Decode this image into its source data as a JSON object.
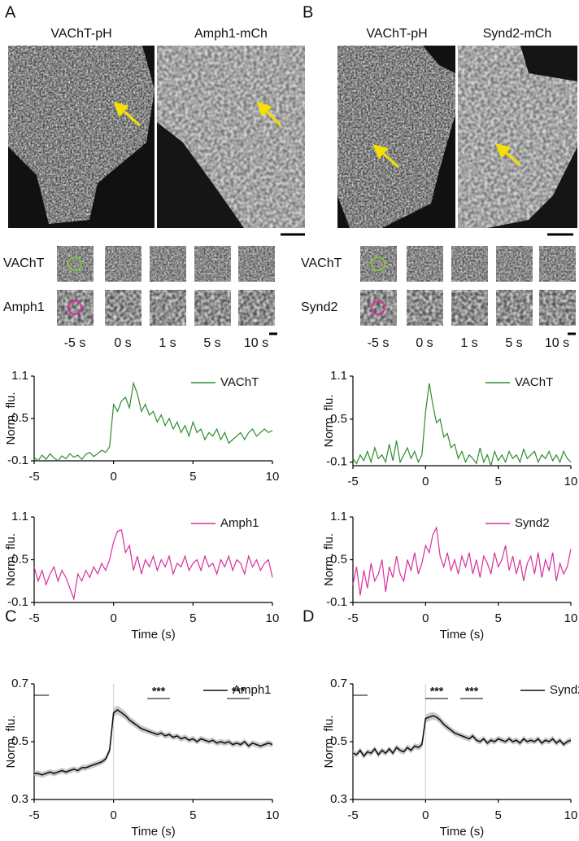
{
  "panels": {
    "A": {
      "label": "A",
      "images": [
        "VAChT-pH",
        "Amph1-mCh"
      ],
      "rows": [
        "VAChT",
        "Amph1"
      ],
      "times": [
        "-5 s",
        "0 s",
        "1 s",
        "5 s",
        "10 s"
      ]
    },
    "B": {
      "label": "B",
      "images": [
        "VAChT-pH",
        "Synd2-mCh"
      ],
      "rows": [
        "VAChT",
        "Synd2"
      ],
      "times": [
        "-5 s",
        "0 s",
        "1 s",
        "5 s",
        "10 s"
      ]
    },
    "C": {
      "label": "C"
    },
    "D": {
      "label": "D"
    }
  },
  "chart_data": [
    {
      "type": "line",
      "ylabel": "Norm. flu.",
      "x": [
        -5,
        -4.75,
        -4.5,
        -4.25,
        -4,
        -3.75,
        -3.5,
        -3.25,
        -3,
        -2.75,
        -2.5,
        -2.25,
        -2,
        -1.75,
        -1.5,
        -1.25,
        -1,
        -0.75,
        -0.5,
        -0.25,
        0,
        0.25,
        0.5,
        0.75,
        1,
        1.25,
        1.5,
        1.75,
        2,
        2.25,
        2.5,
        2.75,
        3,
        3.25,
        3.5,
        3.75,
        4,
        4.25,
        4.5,
        4.75,
        5,
        5.25,
        5.5,
        5.75,
        6,
        6.25,
        6.5,
        6.75,
        7,
        7.25,
        7.5,
        7.75,
        8,
        8.25,
        8.5,
        8.75,
        9,
        9.25,
        9.5,
        9.75,
        10
      ],
      "series": [
        {
          "name": "VAChT",
          "color": "#2e8b2e",
          "values": [
            -0.05,
            -0.1,
            -0.02,
            -0.08,
            0.0,
            -0.06,
            -0.1,
            -0.03,
            -0.07,
            0.0,
            -0.05,
            -0.02,
            -0.08,
            -0.01,
            0.02,
            -0.04,
            0.0,
            0.05,
            0.02,
            0.1,
            0.7,
            0.6,
            0.75,
            0.8,
            0.65,
            1.0,
            0.85,
            0.6,
            0.7,
            0.55,
            0.6,
            0.45,
            0.55,
            0.4,
            0.5,
            0.35,
            0.45,
            0.3,
            0.4,
            0.25,
            0.45,
            0.3,
            0.35,
            0.2,
            0.3,
            0.25,
            0.35,
            0.2,
            0.3,
            0.15,
            0.2,
            0.25,
            0.3,
            0.2,
            0.3,
            0.35,
            0.25,
            0.3,
            0.35,
            0.3,
            0.33
          ]
        }
      ],
      "xlim": [
        -5,
        10
      ],
      "xticks": [
        -5,
        0,
        5,
        10
      ],
      "ylim": [
        -0.1,
        1.1
      ],
      "yticks": [
        -0.1,
        0.5,
        1.1
      ]
    },
    {
      "type": "line",
      "ylabel": "Norm. flu.",
      "xlabel": "Time (s)",
      "x": [
        -5,
        -4.75,
        -4.5,
        -4.25,
        -4,
        -3.75,
        -3.5,
        -3.25,
        -3,
        -2.75,
        -2.5,
        -2.25,
        -2,
        -1.75,
        -1.5,
        -1.25,
        -1,
        -0.75,
        -0.5,
        -0.25,
        0,
        0.25,
        0.5,
        0.75,
        1,
        1.25,
        1.5,
        1.75,
        2,
        2.25,
        2.5,
        2.75,
        3,
        3.25,
        3.5,
        3.75,
        4,
        4.25,
        4.5,
        4.75,
        5,
        5.25,
        5.5,
        5.75,
        6,
        6.25,
        6.5,
        6.75,
        7,
        7.25,
        7.5,
        7.75,
        8,
        8.25,
        8.5,
        8.75,
        9,
        9.25,
        9.5,
        9.75,
        10
      ],
      "series": [
        {
          "name": "Amph1",
          "color": "#d6309a",
          "values": [
            0.4,
            0.2,
            0.35,
            0.15,
            0.3,
            0.4,
            0.2,
            0.35,
            0.25,
            0.1,
            -0.05,
            0.3,
            0.2,
            0.35,
            0.25,
            0.4,
            0.3,
            0.45,
            0.35,
            0.5,
            0.75,
            0.9,
            0.92,
            0.6,
            0.7,
            0.35,
            0.55,
            0.3,
            0.5,
            0.4,
            0.55,
            0.35,
            0.5,
            0.4,
            0.55,
            0.3,
            0.45,
            0.4,
            0.55,
            0.35,
            0.45,
            0.5,
            0.35,
            0.55,
            0.4,
            0.45,
            0.3,
            0.5,
            0.4,
            0.55,
            0.35,
            0.5,
            0.45,
            0.3,
            0.55,
            0.4,
            0.5,
            0.35,
            0.45,
            0.5,
            0.25
          ]
        }
      ],
      "xlim": [
        -5,
        10
      ],
      "xticks": [
        -5,
        0,
        5,
        10
      ],
      "ylim": [
        -0.1,
        1.1
      ],
      "yticks": [
        -0.1,
        0.5,
        1.1
      ]
    },
    {
      "type": "line",
      "ylabel": "Norm. flu.",
      "x": [
        -5,
        -4.75,
        -4.5,
        -4.25,
        -4,
        -3.75,
        -3.5,
        -3.25,
        -3,
        -2.75,
        -2.5,
        -2.25,
        -2,
        -1.75,
        -1.5,
        -1.25,
        -1,
        -0.75,
        -0.5,
        -0.25,
        0,
        0.25,
        0.5,
        0.75,
        1,
        1.25,
        1.5,
        1.75,
        2,
        2.25,
        2.5,
        2.75,
        3,
        3.25,
        3.5,
        3.75,
        4,
        4.25,
        4.5,
        4.75,
        5,
        5.25,
        5.5,
        5.75,
        6,
        6.25,
        6.5,
        6.75,
        7,
        7.25,
        7.5,
        7.75,
        8,
        8.25,
        8.5,
        8.75,
        9,
        9.25,
        9.5,
        9.75,
        10
      ],
      "series": [
        {
          "name": "VAChT",
          "color": "#2e8b2e",
          "values": [
            -0.05,
            -0.12,
            0.0,
            -0.08,
            0.05,
            -0.1,
            0.1,
            -0.05,
            0.0,
            -0.1,
            0.15,
            -0.08,
            0.2,
            -0.1,
            0.0,
            0.1,
            -0.05,
            0.05,
            -0.1,
            0.0,
            0.6,
            1.0,
            0.7,
            0.45,
            0.5,
            0.25,
            0.3,
            0.1,
            0.15,
            -0.05,
            0.05,
            -0.1,
            0.0,
            -0.05,
            -0.12,
            0.1,
            -0.1,
            0.0,
            -0.15,
            0.05,
            -0.08,
            0.0,
            -0.1,
            0.05,
            -0.05,
            0.0,
            -0.1,
            0.08,
            -0.05,
            0.0,
            0.05,
            -0.1,
            0.0,
            -0.05,
            0.05,
            -0.08,
            0.0,
            -0.1,
            0.05,
            -0.05,
            -0.1
          ]
        }
      ],
      "xlim": [
        -5,
        10
      ],
      "xticks": [
        -5,
        0,
        5,
        10
      ],
      "ylim": [
        -0.15,
        1.1
      ],
      "yticks": [
        -0.1,
        0.5,
        1.1
      ]
    },
    {
      "type": "line",
      "ylabel": "Norm. flu.",
      "xlabel": "Time (s)",
      "x": [
        -5,
        -4.75,
        -4.5,
        -4.25,
        -4,
        -3.75,
        -3.5,
        -3.25,
        -3,
        -2.75,
        -2.5,
        -2.25,
        -2,
        -1.75,
        -1.5,
        -1.25,
        -1,
        -0.75,
        -0.5,
        -0.25,
        0,
        0.25,
        0.5,
        0.75,
        1,
        1.25,
        1.5,
        1.75,
        2,
        2.25,
        2.5,
        2.75,
        3,
        3.25,
        3.5,
        3.75,
        4,
        4.25,
        4.5,
        4.75,
        5,
        5.25,
        5.5,
        5.75,
        6,
        6.25,
        6.5,
        6.75,
        7,
        7.25,
        7.5,
        7.75,
        8,
        8.25,
        8.5,
        8.75,
        9,
        9.25,
        9.5,
        9.75,
        10
      ],
      "series": [
        {
          "name": "Synd2",
          "color": "#d6309a",
          "values": [
            0.15,
            0.4,
            0.0,
            0.35,
            0.1,
            0.45,
            0.2,
            0.3,
            0.5,
            0.05,
            0.4,
            0.25,
            0.55,
            0.3,
            0.2,
            0.5,
            0.35,
            0.6,
            0.3,
            0.45,
            0.7,
            0.6,
            0.85,
            0.95,
            0.55,
            0.4,
            0.6,
            0.35,
            0.5,
            0.3,
            0.55,
            0.4,
            0.6,
            0.3,
            0.5,
            0.25,
            0.55,
            0.45,
            0.3,
            0.6,
            0.4,
            0.5,
            0.7,
            0.35,
            0.55,
            0.3,
            0.5,
            0.2,
            0.45,
            0.55,
            0.3,
            0.6,
            0.25,
            0.5,
            0.35,
            0.6,
            0.2,
            0.45,
            0.3,
            0.4,
            0.65
          ]
        }
      ],
      "xlim": [
        -5,
        10
      ],
      "xticks": [
        -5,
        0,
        5,
        10
      ],
      "ylim": [
        -0.1,
        1.1
      ],
      "yticks": [
        -0.1,
        0.5,
        1.1
      ]
    },
    {
      "type": "line",
      "ylabel": "Norm. flu.",
      "xlabel": "Time (s)",
      "x": [
        -5,
        -4.75,
        -4.5,
        -4.25,
        -4,
        -3.75,
        -3.5,
        -3.25,
        -3,
        -2.75,
        -2.5,
        -2.25,
        -2,
        -1.75,
        -1.5,
        -1.25,
        -1,
        -0.75,
        -0.5,
        -0.25,
        0,
        0.25,
        0.5,
        0.75,
        1,
        1.25,
        1.5,
        1.75,
        2,
        2.25,
        2.5,
        2.75,
        3,
        3.25,
        3.5,
        3.75,
        4,
        4.25,
        4.5,
        4.75,
        5,
        5.25,
        5.5,
        5.75,
        6,
        6.25,
        6.5,
        6.75,
        7,
        7.25,
        7.5,
        7.75,
        8,
        8.25,
        8.5,
        8.75,
        9,
        9.25,
        9.5,
        9.75,
        10
      ],
      "series": [
        {
          "name": "Amph1",
          "color": "#111111",
          "values": [
            0.39,
            0.39,
            0.385,
            0.39,
            0.395,
            0.39,
            0.395,
            0.4,
            0.395,
            0.4,
            0.405,
            0.4,
            0.41,
            0.41,
            0.415,
            0.42,
            0.425,
            0.43,
            0.44,
            0.47,
            0.6,
            0.61,
            0.6,
            0.59,
            0.575,
            0.565,
            0.555,
            0.545,
            0.54,
            0.535,
            0.53,
            0.525,
            0.53,
            0.52,
            0.525,
            0.515,
            0.52,
            0.51,
            0.515,
            0.505,
            0.51,
            0.5,
            0.51,
            0.505,
            0.5,
            0.505,
            0.495,
            0.5,
            0.495,
            0.5,
            0.49,
            0.495,
            0.49,
            0.5,
            0.485,
            0.495,
            0.49,
            0.485,
            0.49,
            0.495,
            0.49
          ],
          "errors": [
            0.01,
            0.01,
            0.01,
            0.01,
            0.01,
            0.01,
            0.01,
            0.01,
            0.01,
            0.01,
            0.01,
            0.01,
            0.01,
            0.01,
            0.01,
            0.01,
            0.01,
            0.01,
            0.01,
            0.012,
            0.015,
            0.015,
            0.015,
            0.014,
            0.013,
            0.012,
            0.012,
            0.011,
            0.011,
            0.01,
            0.01,
            0.01,
            0.01,
            0.01,
            0.01,
            0.01,
            0.01,
            0.01,
            0.01,
            0.01,
            0.01,
            0.01,
            0.01,
            0.01,
            0.01,
            0.01,
            0.01,
            0.01,
            0.01,
            0.01,
            0.01,
            0.01,
            0.01,
            0.01,
            0.01,
            0.01,
            0.01,
            0.01,
            0.01,
            0.01,
            0.01
          ]
        }
      ],
      "annotations": [
        {
          "text": "***"
        },
        {
          "text": "***"
        }
      ],
      "xlim": [
        -5,
        10
      ],
      "xticks": [
        -5,
        0,
        5,
        10
      ],
      "ylim": [
        0.3,
        0.7
      ],
      "yticks": [
        0.3,
        0.5,
        0.7
      ]
    },
    {
      "type": "line",
      "ylabel": "Norm. flu.",
      "xlabel": "Time (s)",
      "x": [
        -5,
        -4.75,
        -4.5,
        -4.25,
        -4,
        -3.75,
        -3.5,
        -3.25,
        -3,
        -2.75,
        -2.5,
        -2.25,
        -2,
        -1.75,
        -1.5,
        -1.25,
        -1,
        -0.75,
        -0.5,
        -0.25,
        0,
        0.25,
        0.5,
        0.75,
        1,
        1.25,
        1.5,
        1.75,
        2,
        2.25,
        2.5,
        2.75,
        3,
        3.25,
        3.5,
        3.75,
        4,
        4.25,
        4.5,
        4.75,
        5,
        5.25,
        5.5,
        5.75,
        6,
        6.25,
        6.5,
        6.75,
        7,
        7.25,
        7.5,
        7.75,
        8,
        8.25,
        8.5,
        8.75,
        9,
        9.25,
        9.5,
        9.75,
        10
      ],
      "series": [
        {
          "name": "Synd2",
          "color": "#111111",
          "values": [
            0.46,
            0.455,
            0.47,
            0.45,
            0.465,
            0.46,
            0.475,
            0.455,
            0.47,
            0.46,
            0.475,
            0.46,
            0.48,
            0.47,
            0.465,
            0.48,
            0.47,
            0.485,
            0.48,
            0.49,
            0.58,
            0.585,
            0.59,
            0.585,
            0.575,
            0.56,
            0.55,
            0.54,
            0.53,
            0.525,
            0.52,
            0.515,
            0.51,
            0.52,
            0.505,
            0.5,
            0.51,
            0.495,
            0.505,
            0.5,
            0.51,
            0.505,
            0.5,
            0.51,
            0.5,
            0.505,
            0.495,
            0.51,
            0.5,
            0.505,
            0.5,
            0.51,
            0.495,
            0.505,
            0.5,
            0.51,
            0.495,
            0.505,
            0.49,
            0.5,
            0.505
          ],
          "errors": [
            0.01,
            0.01,
            0.01,
            0.01,
            0.01,
            0.01,
            0.01,
            0.01,
            0.01,
            0.01,
            0.01,
            0.01,
            0.01,
            0.01,
            0.01,
            0.01,
            0.01,
            0.01,
            0.01,
            0.012,
            0.014,
            0.014,
            0.014,
            0.013,
            0.013,
            0.012,
            0.012,
            0.011,
            0.011,
            0.01,
            0.01,
            0.01,
            0.01,
            0.01,
            0.01,
            0.01,
            0.01,
            0.01,
            0.01,
            0.01,
            0.01,
            0.01,
            0.01,
            0.01,
            0.01,
            0.01,
            0.01,
            0.01,
            0.01,
            0.01,
            0.01,
            0.01,
            0.01,
            0.01,
            0.01,
            0.01,
            0.01,
            0.01,
            0.01,
            0.01,
            0.01
          ]
        }
      ],
      "annotations": [
        {
          "text": "***"
        },
        {
          "text": "***"
        }
      ],
      "xlim": [
        -5,
        10
      ],
      "xticks": [
        -5,
        0,
        5,
        10
      ],
      "ylim": [
        0.3,
        0.7
      ],
      "yticks": [
        0.3,
        0.5,
        0.7
      ]
    }
  ]
}
